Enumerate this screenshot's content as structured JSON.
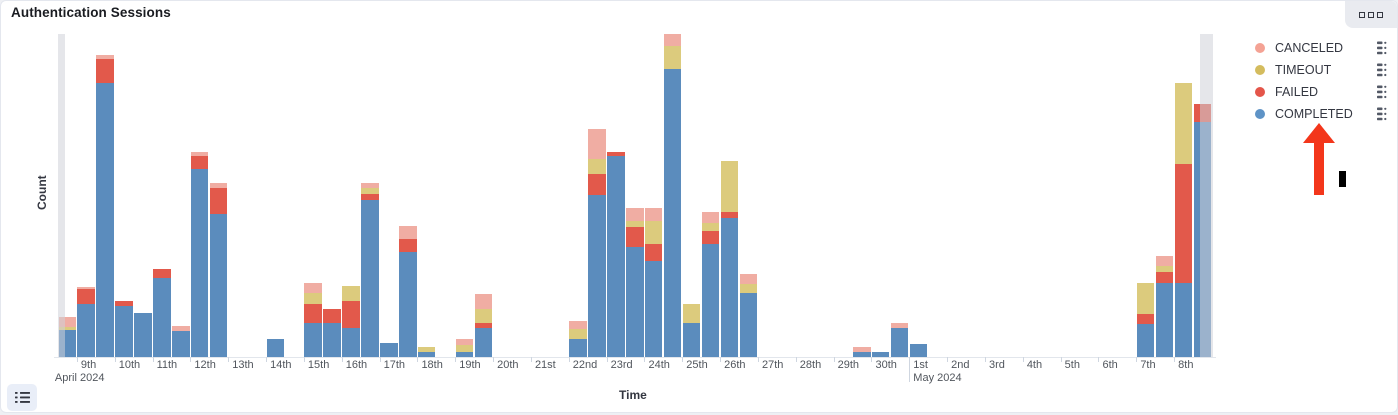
{
  "panel": {
    "title": "Authentication Sessions",
    "options_button": "panel options"
  },
  "axes": {
    "x_title": "Time",
    "y_title": "Count",
    "x_tick_labels": [
      {
        "label": "9th",
        "month": "April 2024"
      },
      {
        "label": "10th"
      },
      {
        "label": "11th"
      },
      {
        "label": "12th"
      },
      {
        "label": "13th"
      },
      {
        "label": "14th"
      },
      {
        "label": "15th"
      },
      {
        "label": "16th"
      },
      {
        "label": "17th"
      },
      {
        "label": "18th"
      },
      {
        "label": "19th"
      },
      {
        "label": "20th"
      },
      {
        "label": "21st"
      },
      {
        "label": "22nd"
      },
      {
        "label": "23rd"
      },
      {
        "label": "24th"
      },
      {
        "label": "25th"
      },
      {
        "label": "26th"
      },
      {
        "label": "27th"
      },
      {
        "label": "28th"
      },
      {
        "label": "29th"
      },
      {
        "label": "30th"
      },
      {
        "label": "1st",
        "month": "May 2024"
      },
      {
        "label": "2nd"
      },
      {
        "label": "3rd"
      },
      {
        "label": "4th"
      },
      {
        "label": "5th"
      },
      {
        "label": "6th"
      },
      {
        "label": "7th"
      },
      {
        "label": "8th"
      }
    ]
  },
  "colors": {
    "completed": "#5B8CBD",
    "failed": "#E2594B",
    "timeout": "#DCCB7D",
    "canceled": "#F0ADA3",
    "legend_dots": {
      "completed": "#5E93C6",
      "failed": "#E4554A",
      "timeout": "#D4BC5E",
      "canceled": "#F4A294"
    },
    "partial_band": "rgba(208,210,216,0.55)",
    "annotation_arrow": "#F3361B",
    "annotation_cursor": "#000000"
  },
  "legend": {
    "items": [
      {
        "label": "CANCELED",
        "key": "canceled"
      },
      {
        "label": "TIMEOUT",
        "key": "timeout"
      },
      {
        "label": "FAILED",
        "key": "failed"
      },
      {
        "label": "COMPLETED",
        "key": "completed"
      }
    ]
  },
  "chart_data": {
    "type": "bar",
    "stacked": true,
    "title": "Authentication Sessions",
    "xlabel": "Time",
    "ylabel": "Count",
    "x_unit": "12-hour buckets, Apr 8 2024 12:00 through May 8 2024 24:00",
    "x_range": [
      "2024-04-08 12:00",
      "2024-05-09 00:00"
    ],
    "ylim": [
      0,
      323
    ],
    "y_tick_labels_shown": false,
    "grid": false,
    "legend_position": "right",
    "stack_order_bottom_to_top": [
      "completed",
      "failed",
      "timeout",
      "canceled"
    ],
    "partial_buckets": [
      "first",
      "last"
    ],
    "bars": [
      {
        "slot": 0,
        "time": "Apr 8 PM",
        "completed": 27,
        "failed": 0,
        "timeout": 3,
        "canceled": 10
      },
      {
        "slot": 1,
        "time": "Apr 9 AM",
        "completed": 53,
        "failed": 15,
        "timeout": 0,
        "canceled": 2
      },
      {
        "slot": 2,
        "time": "Apr 9 PM",
        "completed": 274,
        "failed": 24,
        "timeout": 0,
        "canceled": 4
      },
      {
        "slot": 3,
        "time": "Apr 10 AM",
        "completed": 51,
        "failed": 5,
        "timeout": 0,
        "canceled": 0
      },
      {
        "slot": 4,
        "time": "Apr 10 PM",
        "completed": 44,
        "failed": 0,
        "timeout": 0,
        "canceled": 0
      },
      {
        "slot": 5,
        "time": "Apr 11 AM",
        "completed": 79,
        "failed": 9,
        "timeout": 0,
        "canceled": 0
      },
      {
        "slot": 6,
        "time": "Apr 11 PM",
        "completed": 26,
        "failed": 0,
        "timeout": 0,
        "canceled": 5
      },
      {
        "slot": 7,
        "time": "Apr 12 AM",
        "completed": 188,
        "failed": 13,
        "timeout": 0,
        "canceled": 4
      },
      {
        "slot": 8,
        "time": "Apr 12 PM",
        "completed": 143,
        "failed": 26,
        "timeout": 0,
        "canceled": 5
      },
      {
        "slot": 11,
        "time": "Apr 14 AM",
        "completed": 18,
        "failed": 0,
        "timeout": 0,
        "canceled": 0
      },
      {
        "slot": 13,
        "time": "Apr 15 AM",
        "completed": 34,
        "failed": 19,
        "timeout": 11,
        "canceled": 10
      },
      {
        "slot": 14,
        "time": "Apr 15 PM",
        "completed": 34,
        "failed": 14,
        "timeout": 0,
        "canceled": 0
      },
      {
        "slot": 15,
        "time": "Apr 16 AM",
        "completed": 29,
        "failed": 27,
        "timeout": 15,
        "canceled": 0
      },
      {
        "slot": 16,
        "time": "Apr 16 PM",
        "completed": 157,
        "failed": 6,
        "timeout": 6,
        "canceled": 5
      },
      {
        "slot": 17,
        "time": "Apr 17 AM",
        "completed": 14,
        "failed": 0,
        "timeout": 0,
        "canceled": 0
      },
      {
        "slot": 18,
        "time": "Apr 17 PM",
        "completed": 105,
        "failed": 13,
        "timeout": 0,
        "canceled": 13
      },
      {
        "slot": 19,
        "time": "Apr 18 AM",
        "completed": 5,
        "failed": 0,
        "timeout": 5,
        "canceled": 0
      },
      {
        "slot": 21,
        "time": "Apr 19 AM",
        "completed": 5,
        "failed": 0,
        "timeout": 7,
        "canceled": 6
      },
      {
        "slot": 22,
        "time": "Apr 19 PM",
        "completed": 29,
        "failed": 5,
        "timeout": 14,
        "canceled": 15
      },
      {
        "slot": 27,
        "time": "Apr 22 AM",
        "completed": 18,
        "failed": 0,
        "timeout": 10,
        "canceled": 8
      },
      {
        "slot": 28,
        "time": "Apr 22 PM",
        "completed": 162,
        "failed": 21,
        "timeout": 15,
        "canceled": 30
      },
      {
        "slot": 29,
        "time": "Apr 23 AM",
        "completed": 201,
        "failed": 4,
        "timeout": 0,
        "canceled": 0
      },
      {
        "slot": 30,
        "time": "Apr 23 PM",
        "completed": 110,
        "failed": 20,
        "timeout": 6,
        "canceled": 13
      },
      {
        "slot": 31,
        "time": "Apr 24 AM",
        "completed": 96,
        "failed": 17,
        "timeout": 23,
        "canceled": 13
      },
      {
        "slot": 32,
        "time": "Apr 24 PM",
        "completed": 288,
        "failed": 0,
        "timeout": 23,
        "canceled": 12
      },
      {
        "slot": 33,
        "time": "Apr 25 AM",
        "completed": 34,
        "failed": 0,
        "timeout": 19,
        "canceled": 0
      },
      {
        "slot": 34,
        "time": "Apr 25 PM",
        "completed": 113,
        "failed": 13,
        "timeout": 8,
        "canceled": 11
      },
      {
        "slot": 35,
        "time": "Apr 26 AM",
        "completed": 139,
        "failed": 6,
        "timeout": 51,
        "canceled": 0
      },
      {
        "slot": 36,
        "time": "Apr 26 PM",
        "completed": 64,
        "failed": 0,
        "timeout": 9,
        "canceled": 10
      },
      {
        "slot": 42,
        "time": "Apr 29 PM",
        "completed": 5,
        "failed": 0,
        "timeout": 0,
        "canceled": 5
      },
      {
        "slot": 43,
        "time": "Apr 30 AM",
        "completed": 5,
        "failed": 0,
        "timeout": 0,
        "canceled": 0
      },
      {
        "slot": 44,
        "time": "Apr 30 PM",
        "completed": 29,
        "failed": 0,
        "timeout": 0,
        "canceled": 5
      },
      {
        "slot": 45,
        "time": "May 1 AM",
        "completed": 13,
        "failed": 0,
        "timeout": 0,
        "canceled": 0
      },
      {
        "slot": 57,
        "time": "May 7 AM",
        "completed": 33,
        "failed": 10,
        "timeout": 31,
        "canceled": 0
      },
      {
        "slot": 58,
        "time": "May 7 PM",
        "completed": 74,
        "failed": 11,
        "timeout": 6,
        "canceled": 10
      },
      {
        "slot": 59,
        "time": "May 8 AM",
        "completed": 74,
        "failed": 119,
        "timeout": 81,
        "canceled": 0
      },
      {
        "slot": 60,
        "time": "May 8 PM",
        "completed": 235,
        "failed": 18,
        "timeout": 0,
        "canceled": 0
      }
    ]
  }
}
